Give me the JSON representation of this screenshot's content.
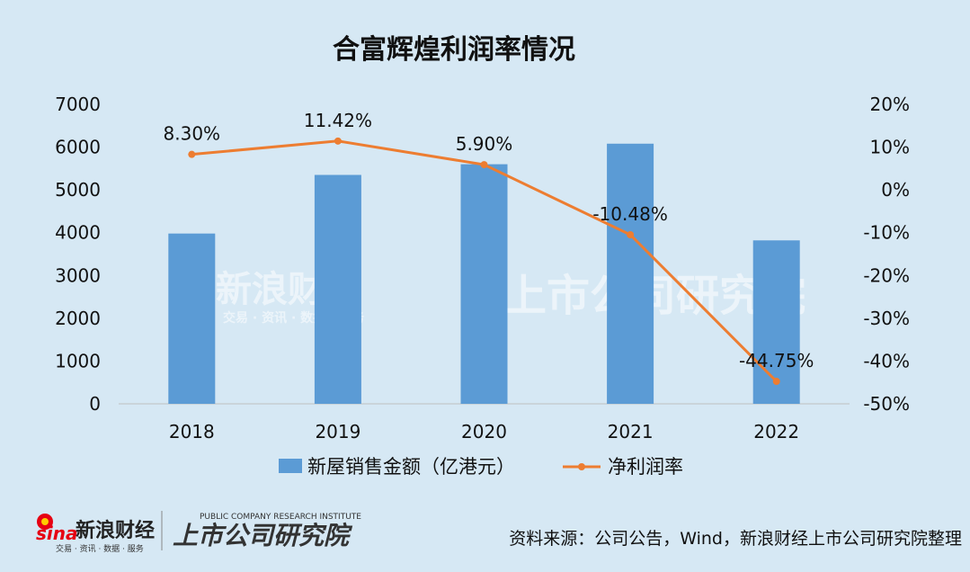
{
  "chart_data": {
    "type": "bar+line",
    "title": "合富辉煌利润率情况",
    "categories": [
      "2018",
      "2019",
      "2020",
      "2021",
      "2022"
    ],
    "series": [
      {
        "name": "新屋销售金额（亿港元）",
        "type": "bar",
        "axis": "left",
        "color": "#5b9bd5",
        "values": [
          3980,
          5350,
          5600,
          6080,
          3820
        ]
      },
      {
        "name": "净利润率",
        "type": "line",
        "axis": "right",
        "color": "#ed7d31",
        "values": [
          8.3,
          11.42,
          5.9,
          -10.48,
          -44.75
        ],
        "labels": [
          "8.30%",
          "11.42%",
          "5.90%",
          "-10.48%",
          "-44.75%"
        ]
      }
    ],
    "y_left": {
      "min": 0,
      "max": 7000,
      "ticks": [
        "0",
        "1000",
        "2000",
        "3000",
        "4000",
        "5000",
        "6000",
        "7000"
      ]
    },
    "y_right": {
      "min": -50,
      "max": 20,
      "ticks": [
        "-50%",
        "-40%",
        "-30%",
        "-20%",
        "-10%",
        "0%",
        "10%",
        "20%"
      ]
    },
    "legend_position": "bottom",
    "grid": false
  },
  "source": "资料来源：公司公告，Wind，新浪财经上市公司研究院整理",
  "logo": {
    "sina_text": "新浪财经",
    "sina_sub": "交易 · 资讯 · 数据 · 服务",
    "institute_text": "上市公司研究院",
    "institute_sub": "PUBLIC COMPANY RESEARCH INSTITUTE"
  }
}
